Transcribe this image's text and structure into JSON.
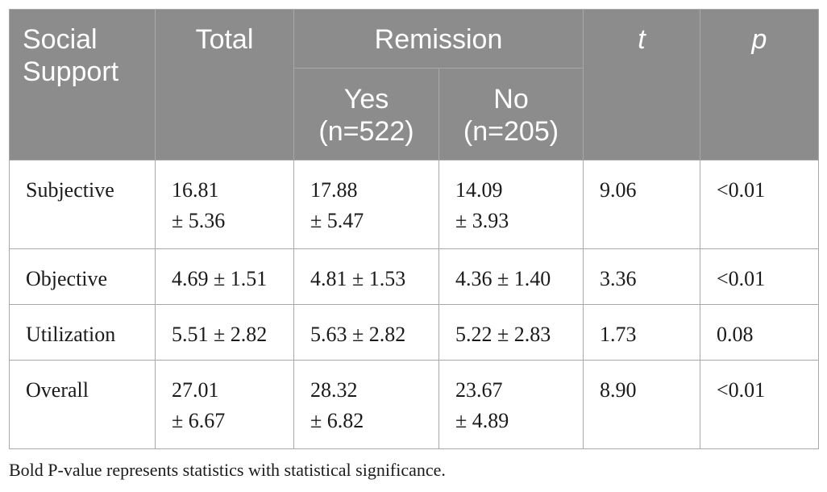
{
  "table": {
    "header": {
      "social_support": [
        "Social",
        "Support"
      ],
      "total": "Total",
      "remission": "Remission",
      "yes": [
        "Yes",
        "(n=522)"
      ],
      "no": [
        "No",
        "(n=205)"
      ],
      "t": "t",
      "p": "p"
    },
    "rows": [
      {
        "label": "Subjective",
        "total": [
          "16.81",
          "± 5.36"
        ],
        "yes": [
          "17.88",
          "± 5.47"
        ],
        "no": [
          "14.09",
          "± 3.93"
        ],
        "t": "9.06",
        "p": "<0.01"
      },
      {
        "label": "Objective",
        "total": [
          "4.69 ± 1.51"
        ],
        "yes": [
          "4.81 ± 1.53"
        ],
        "no": [
          "4.36 ± 1.40"
        ],
        "t": "3.36",
        "p": "<0.01"
      },
      {
        "label": "Utilization",
        "total": [
          "5.51 ± 2.82"
        ],
        "yes": [
          "5.63 ± 2.82"
        ],
        "no": [
          "5.22 ± 2.83"
        ],
        "t": "1.73",
        "p": "0.08"
      },
      {
        "label": "Overall",
        "total": [
          "27.01",
          "± 6.67"
        ],
        "yes": [
          "28.32",
          "± 6.82"
        ],
        "no": [
          "23.67",
          "± 4.89"
        ],
        "t": "8.90",
        "p": "<0.01"
      }
    ]
  },
  "footnote": "Bold P-value represents statistics with statistical significance."
}
